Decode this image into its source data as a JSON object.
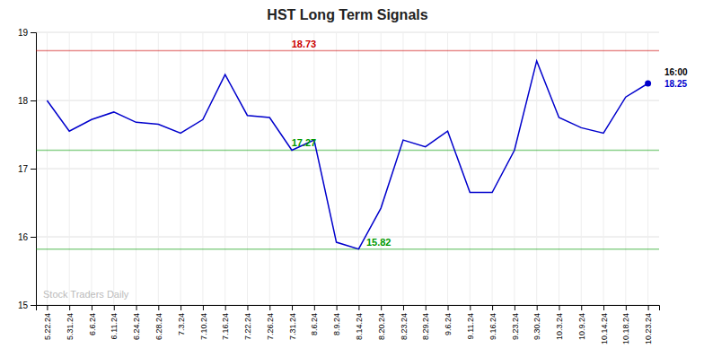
{
  "chart_data": {
    "type": "line",
    "title": "HST Long Term Signals",
    "categories": [
      "5.22.24",
      "5.31.24",
      "6.6.24",
      "6.11.24",
      "6.24.24",
      "6.28.24",
      "7.3.24",
      "7.10.24",
      "7.16.24",
      "7.22.24",
      "7.26.24",
      "7.31.24",
      "8.6.24",
      "8.9.24",
      "8.14.24",
      "8.20.24",
      "8.23.24",
      "8.29.24",
      "9.6.24",
      "9.11.24",
      "9.16.24",
      "9.23.24",
      "9.30.24",
      "10.3.24",
      "10.9.24",
      "10.14.24",
      "10.18.24",
      "10.23.24"
    ],
    "values": [
      18.0,
      17.55,
      17.72,
      17.83,
      17.68,
      17.65,
      17.52,
      17.72,
      18.38,
      17.78,
      17.75,
      17.27,
      17.42,
      15.92,
      15.82,
      16.42,
      17.42,
      17.32,
      17.55,
      16.65,
      16.65,
      17.27,
      18.58,
      17.75,
      17.6,
      17.52,
      18.05,
      18.25
    ],
    "color": "#0000cc",
    "marker": "last-point",
    "value_labels": [
      null,
      null,
      null,
      null,
      null,
      null,
      null,
      null,
      null,
      null,
      null,
      null,
      null,
      null,
      null,
      null,
      null,
      null,
      null,
      null,
      null,
      null,
      null,
      null,
      null,
      null,
      null,
      "18.25"
    ],
    "reference_lines": [
      {
        "value": 18.73,
        "color": "#cc0000"
      },
      {
        "value": 17.27,
        "color": "#009900"
      },
      {
        "value": 15.82,
        "color": "#009900"
      }
    ],
    "annotations": [
      {
        "text": "16:00",
        "color": "#000000"
      },
      {
        "text": "Stock Traders Daily",
        "color": "#bbbbbb"
      }
    ],
    "ylim": [
      15.0,
      19.0
    ],
    "yticks": [
      15,
      16,
      17,
      18,
      19
    ],
    "grid": true
  }
}
